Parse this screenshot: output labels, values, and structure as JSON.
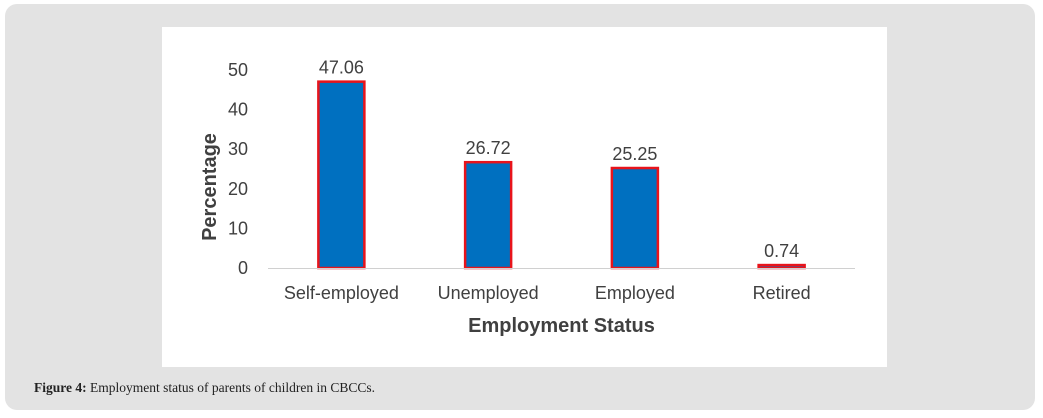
{
  "figure": {
    "caption_label": "Figure 4:",
    "caption_text": " Employment status of parents of children in CBCCs."
  },
  "chart_data": {
    "type": "bar",
    "categories": [
      "Self-employed",
      "Unemployed",
      "Employed",
      "Retired"
    ],
    "values": [
      47.06,
      26.72,
      25.25,
      0.74
    ],
    "data_labels": [
      "47.06",
      "26.72",
      "25.25",
      "0.74"
    ],
    "title": "",
    "xlabel": "Employment Status",
    "ylabel": "Percentage",
    "ylim": [
      0,
      50
    ],
    "yticks": [
      0,
      10,
      20,
      30,
      40,
      50
    ],
    "ytick_labels": [
      "0",
      "10",
      "20",
      "30",
      "40",
      "50"
    ],
    "grid": false,
    "legend": "none",
    "bar_fill": "#0070c0",
    "bar_edge": "#e8141b",
    "text_color": "#404040",
    "axis_line_color": "#d0d0d0"
  }
}
